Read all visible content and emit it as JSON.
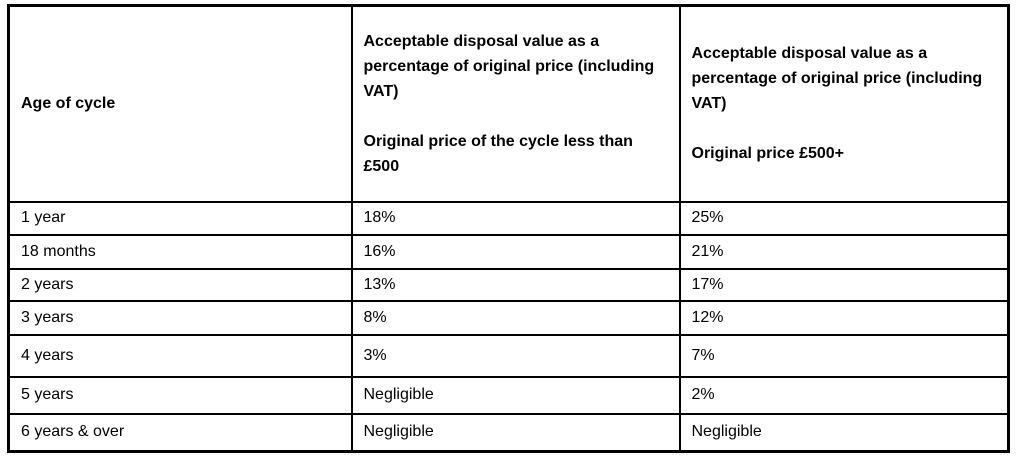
{
  "table": {
    "columns": [
      {
        "header": "Age of cycle",
        "subheader": ""
      },
      {
        "header": "Acceptable disposal value as a percentage of original price (including VAT)",
        "subheader": "Original price of the cycle less than £500"
      },
      {
        "header": "Acceptable disposal value as a percentage of original price (including VAT)",
        "subheader": "Original price £500+"
      }
    ],
    "rows": [
      {
        "age": "1 year",
        "under500": "18%",
        "over500": "25%"
      },
      {
        "age": "18 months",
        "under500": "16%",
        "over500": "21%"
      },
      {
        "age": "2 years",
        "under500": "13%",
        "over500": "17%"
      },
      {
        "age": "3 years",
        "under500": "8%",
        "over500": "12%"
      },
      {
        "age": "4 years",
        "under500": "3%",
        "over500": "7%"
      },
      {
        "age": "5 years",
        "under500": "Negligible",
        "over500": "2%"
      },
      {
        "age": "6 years & over",
        "under500": "Negligible",
        "over500": "Negligible"
      }
    ]
  },
  "colors": {
    "border": "#000000",
    "text": "#000000",
    "background": "#ffffff"
  }
}
